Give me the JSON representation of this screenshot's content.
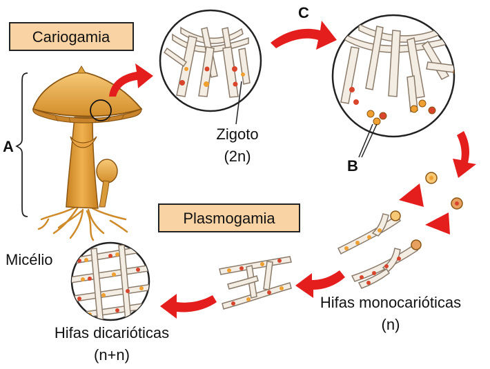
{
  "labels": {
    "cariogamia": "Cariogamia",
    "plasmogamia": "Plasmogamia",
    "a": "A",
    "b": "B",
    "c": "C",
    "zigoto": "Zigoto",
    "zigoto_ploidy": "(2n)",
    "micelio": "Micélio",
    "hifas_mono": "Hifas monocarióticas",
    "hifas_mono_ploidy": "(n)",
    "hifas_di": "Hifas dicarióticas",
    "hifas_di_ploidy": "(n+n)"
  },
  "colors": {
    "arrow": "#e41d1d",
    "box_fill": "#f9d3a3",
    "mushroom": "#e0a33b",
    "hypha_fill": "#f3ede3",
    "nucleus_red": "#d9452c",
    "nucleus_orange": "#f0a030"
  }
}
